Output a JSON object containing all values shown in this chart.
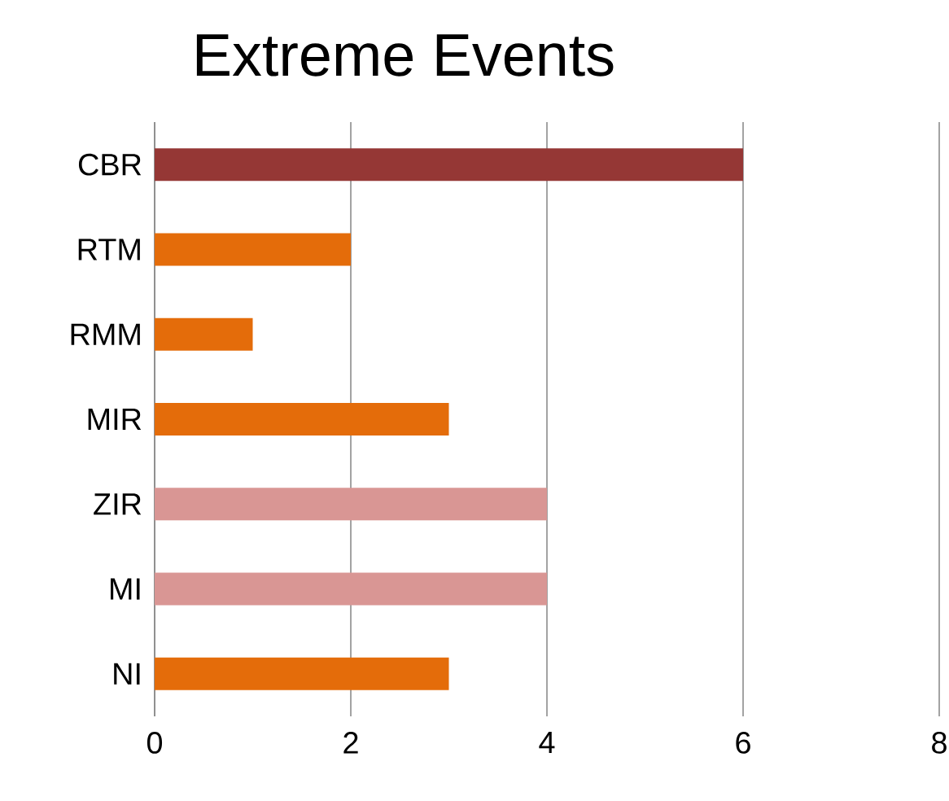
{
  "chart_data": {
    "type": "bar",
    "orientation": "horizontal",
    "title": "Extreme Events",
    "categories": [
      "CBR",
      "RTM",
      "RMM",
      "MIR",
      "ZIR",
      "MI",
      "NI"
    ],
    "values": [
      6,
      2,
      1,
      3,
      4,
      4,
      3
    ],
    "colors": [
      "#953735",
      "#e46c0a",
      "#e46c0a",
      "#e46c0a",
      "#d99694",
      "#d99694",
      "#e46c0a"
    ],
    "xlim": [
      0,
      8
    ],
    "xticks": [
      0,
      2,
      4,
      6,
      8
    ],
    "grid": "x"
  }
}
